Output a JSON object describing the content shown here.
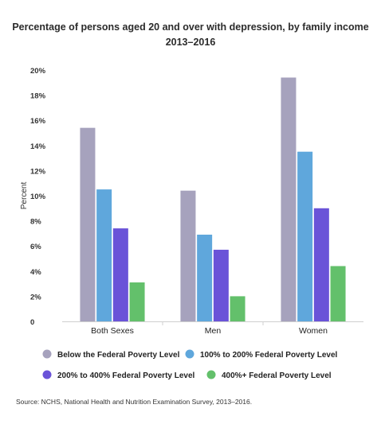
{
  "chart_data": {
    "type": "bar",
    "title": "Percentage of persons aged 20 and over with depression, by family income",
    "subtitle": "2013–2016",
    "ylabel": "Percent",
    "xlabel": "",
    "ylim": [
      0,
      20
    ],
    "yticks": [
      0,
      2,
      4,
      6,
      8,
      10,
      12,
      14,
      16,
      18,
      20
    ],
    "ytick_labels": [
      "0",
      "2%",
      "4%",
      "6%",
      "8%",
      "10%",
      "12%",
      "14%",
      "16%",
      "18%",
      "20%"
    ],
    "categories": [
      "Both Sexes",
      "Men",
      "Women"
    ],
    "series": [
      {
        "name": "Below the Federal Poverty Level",
        "color": "#a6a2bd",
        "values": [
          15.4,
          10.4,
          19.4
        ]
      },
      {
        "name": "100% to 200% Federal Poverty Level",
        "color": "#5fa7dc",
        "values": [
          10.5,
          6.9,
          13.5
        ]
      },
      {
        "name": "200% to 400% Federal Poverty Level",
        "color": "#6a53d8",
        "values": [
          7.4,
          5.7,
          9.0
        ]
      },
      {
        "name": "400%+ Federal Poverty Level",
        "color": "#63c06b",
        "values": [
          3.1,
          2.0,
          4.4
        ]
      }
    ],
    "grid": false,
    "legend_position": "bottom"
  },
  "source": "Source: NCHS, National Health and Nutrition Examination Survey, 2013–2016."
}
